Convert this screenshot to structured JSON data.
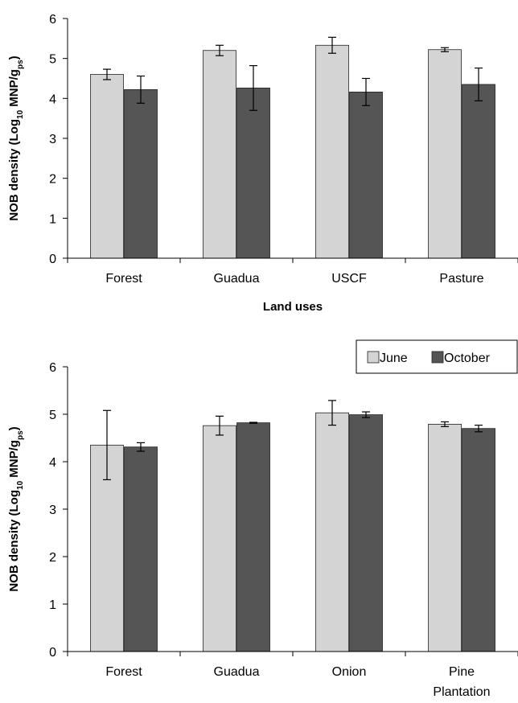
{
  "colors": {
    "june": "#d4d4d4",
    "october": "#555555",
    "axis": "#000000",
    "bar_edge": "#222222"
  },
  "chart_data": [
    {
      "type": "bar",
      "title": "",
      "xlabel": "Land uses",
      "ylabel": {
        "main": "NOB density (Log",
        "sub1": "10",
        "mid": " MNP/g",
        "sub2": "ps",
        "end": ")"
      },
      "ylim": [
        0,
        6
      ],
      "yticks": [
        "0",
        "1",
        "2",
        "3",
        "4",
        "5",
        "6"
      ],
      "categories": [
        {
          "label": "Forest",
          "label2": ""
        },
        {
          "label": "Guadua",
          "label2": ""
        },
        {
          "label": "USCF",
          "label2": ""
        },
        {
          "label": "Pasture",
          "label2": ""
        }
      ],
      "series": [
        {
          "name": "June",
          "values": [
            4.6,
            5.2,
            5.33,
            5.22
          ],
          "errors": [
            0.13,
            0.13,
            0.2,
            0.05
          ]
        },
        {
          "name": "October",
          "values": [
            4.22,
            4.26,
            4.16,
            4.35
          ],
          "errors": [
            0.34,
            0.56,
            0.34,
            0.41
          ]
        }
      ]
    },
    {
      "type": "bar",
      "title": "",
      "xlabel": "",
      "ylabel": {
        "main": "NOB density (Log",
        "sub1": "10",
        "mid": " MNP/g",
        "sub2": "ps",
        "end": ")"
      },
      "ylim": [
        0,
        6
      ],
      "yticks": [
        "0",
        "1",
        "2",
        "3",
        "4",
        "5",
        "6"
      ],
      "categories": [
        {
          "label": "Forest",
          "label2": ""
        },
        {
          "label": "Guadua",
          "label2": ""
        },
        {
          "label": "Onion",
          "label2": ""
        },
        {
          "label": "Pine",
          "label2": "Plantation"
        }
      ],
      "series": [
        {
          "name": "June",
          "values": [
            4.35,
            4.76,
            5.03,
            4.79
          ],
          "errors": [
            0.73,
            0.2,
            0.26,
            0.05
          ]
        },
        {
          "name": "October",
          "values": [
            4.31,
            4.82,
            4.99,
            4.7
          ],
          "errors": [
            0.09,
            0.01,
            0.06,
            0.07
          ]
        }
      ]
    }
  ],
  "legend": {
    "items": [
      "June",
      "October"
    ],
    "placement": "top-right of lower chart"
  }
}
